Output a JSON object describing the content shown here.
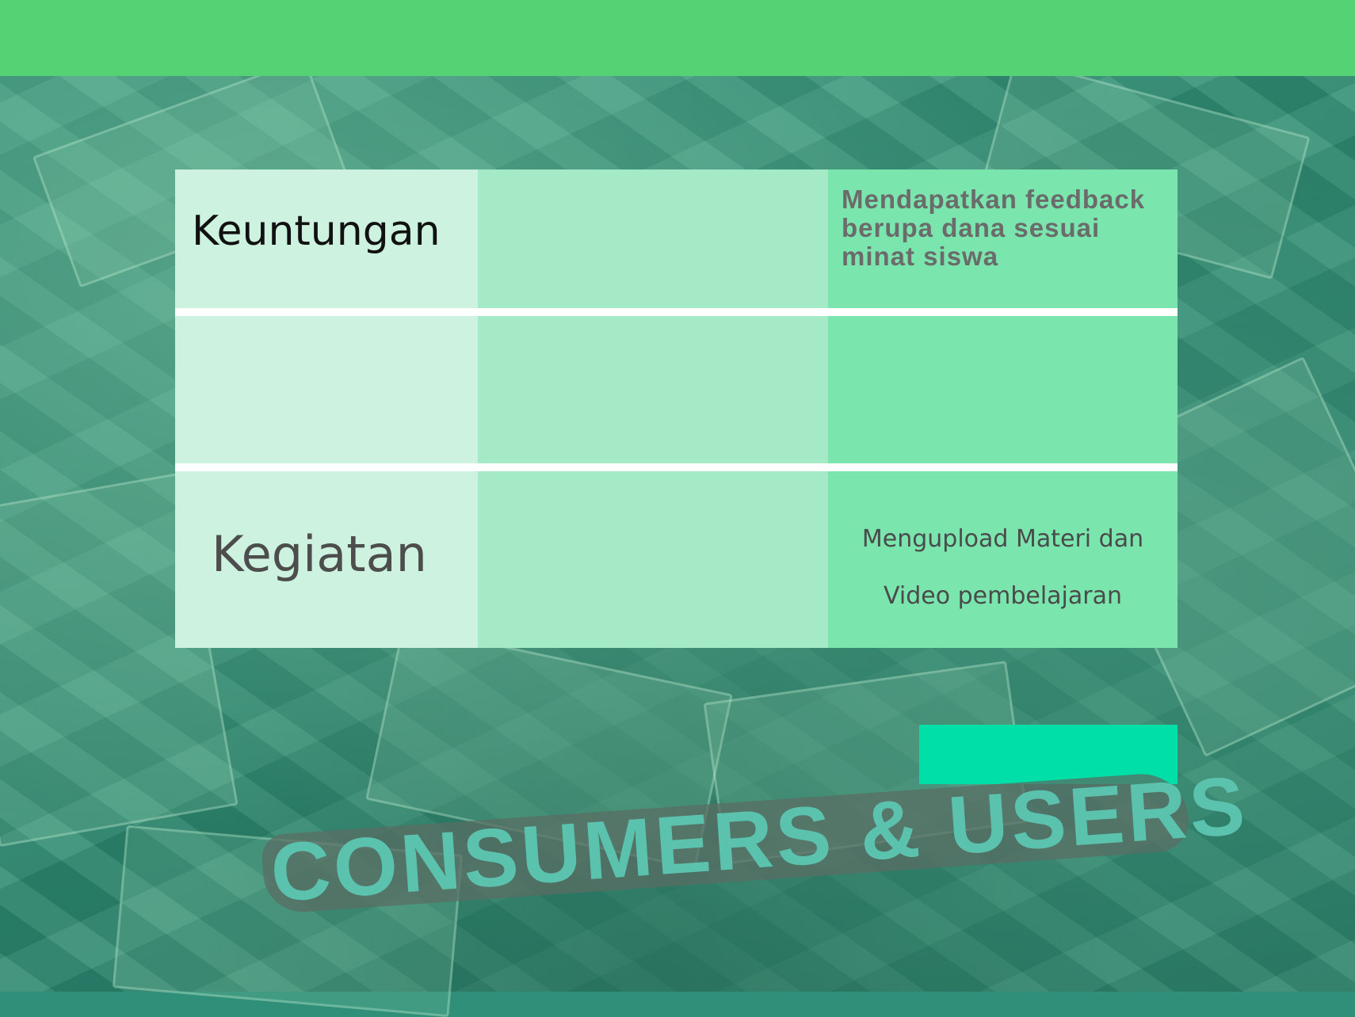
{
  "table": {
    "rows": [
      {
        "label": "Keuntungan",
        "middle": "",
        "right": [
          "Mendapatkan feedback",
          "berupa dana sesuai",
          "minat siswa"
        ]
      },
      {
        "label": "",
        "middle": "",
        "right": []
      },
      {
        "label": "Kegiatan",
        "middle": "",
        "right": [
          "Mengupload Materi dan",
          "Video pembelajaran"
        ]
      }
    ]
  },
  "button": {
    "label": ""
  },
  "banner": {
    "text": "CONSUMERS & USERS"
  },
  "colors": {
    "top_bar": "#55d374",
    "col1": "#cdf3e0",
    "col2": "#a5eac6",
    "col3": "#7ae6ae",
    "button": "#00dfa8"
  }
}
